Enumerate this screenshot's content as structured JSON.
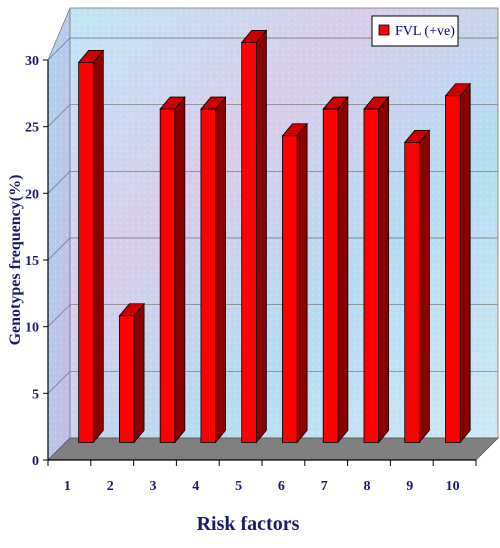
{
  "chart_data": {
    "type": "bar",
    "categories": [
      "1",
      "2",
      "3",
      "4",
      "5",
      "6",
      "7",
      "8",
      "9",
      "10"
    ],
    "series": [
      {
        "name": "FVL (+ve)",
        "values": [
          28.5,
          9.5,
          25,
          25,
          30,
          23,
          25,
          25,
          22.5,
          26
        ],
        "color": "#ff0000"
      }
    ],
    "xlabel": "Risk factors",
    "ylabel": "Genotypes frequency(%)",
    "ylim": [
      0,
      30
    ],
    "yticks": [
      0,
      5,
      10,
      15,
      20,
      25,
      30
    ],
    "grid": true,
    "legend_position": "top-right",
    "style": "3d",
    "colors": {
      "bar_front": "#ff0000",
      "bar_side": "#8b0000",
      "bar_top": "#cc0000",
      "wall": "#a8d8f0",
      "floor": "#808080",
      "axis_text": "#1a1a6e"
    }
  }
}
